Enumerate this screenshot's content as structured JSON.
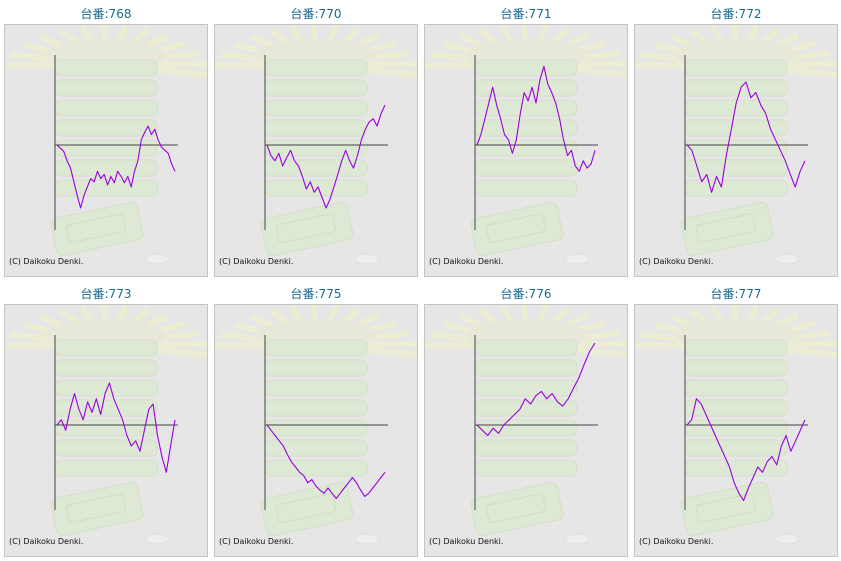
{
  "copyright": "(C) Daikoku Denki.",
  "colors": {
    "title": "#1a6a8c",
    "line": "#9900dd",
    "axis": "#444444",
    "panel_bg": "#e6e6e6"
  },
  "chart_data": [
    {
      "type": "line",
      "title": "台番:768",
      "y": [
        0,
        -3,
        -6,
        -15,
        -22,
        -35,
        -48,
        -60,
        -48,
        -40,
        -32,
        -35,
        -25,
        -32,
        -28,
        -38,
        -30,
        -36,
        -25,
        -30,
        -36,
        -30,
        -40,
        -25,
        -15,
        5,
        12,
        18,
        10,
        15,
        5,
        -2,
        -5,
        -8,
        -18,
        -25
      ]
    },
    {
      "type": "line",
      "title": "台番:770",
      "y": [
        0,
        -10,
        -15,
        -8,
        -20,
        -12,
        -5,
        -15,
        -20,
        -30,
        -42,
        -35,
        -45,
        -40,
        -50,
        -60,
        -52,
        -40,
        -28,
        -15,
        -5,
        -15,
        -22,
        -10,
        5,
        15,
        22,
        25,
        18,
        30,
        38
      ]
    },
    {
      "type": "line",
      "title": "台番:771",
      "y": [
        0,
        10,
        25,
        40,
        55,
        38,
        25,
        10,
        5,
        -8,
        5,
        30,
        50,
        42,
        55,
        40,
        62,
        75,
        58,
        50,
        40,
        25,
        5,
        -10,
        -5,
        -20,
        -25,
        -15,
        -22,
        -18,
        -5
      ]
    },
    {
      "type": "line",
      "title": "台番:772",
      "y": [
        0,
        -5,
        -20,
        -35,
        -28,
        -45,
        -30,
        -40,
        -10,
        15,
        40,
        55,
        60,
        45,
        50,
        38,
        30,
        15,
        5,
        -5,
        -15,
        -28,
        -40,
        -25,
        -15
      ]
    },
    {
      "type": "line",
      "title": "台番:773",
      "y": [
        0,
        5,
        -5,
        15,
        30,
        15,
        5,
        22,
        12,
        25,
        10,
        30,
        40,
        25,
        15,
        5,
        -10,
        -20,
        -15,
        -25,
        -5,
        15,
        20,
        -10,
        -30,
        -45,
        -20,
        5
      ]
    },
    {
      "type": "line",
      "title": "台番:775",
      "y": [
        0,
        -5,
        -10,
        -15,
        -20,
        -28,
        -35,
        -40,
        -45,
        -48,
        -55,
        -52,
        -58,
        -62,
        -65,
        -60,
        -65,
        -70,
        -65,
        -60,
        -55,
        -50,
        -55,
        -62,
        -68,
        -65,
        -60,
        -55,
        -50,
        -45
      ]
    },
    {
      "type": "line",
      "title": "台番:776",
      "y": [
        0,
        -5,
        -10,
        -3,
        -8,
        0,
        5,
        10,
        15,
        25,
        20,
        28,
        32,
        25,
        30,
        22,
        18,
        25,
        35,
        45,
        58,
        70,
        78
      ]
    },
    {
      "type": "line",
      "title": "台番:777",
      "y": [
        0,
        5,
        25,
        20,
        10,
        0,
        -10,
        -20,
        -30,
        -40,
        -55,
        -65,
        -72,
        -60,
        -50,
        -40,
        -45,
        -35,
        -30,
        -38,
        -20,
        -10,
        -25,
        -15,
        -5,
        5
      ]
    }
  ]
}
